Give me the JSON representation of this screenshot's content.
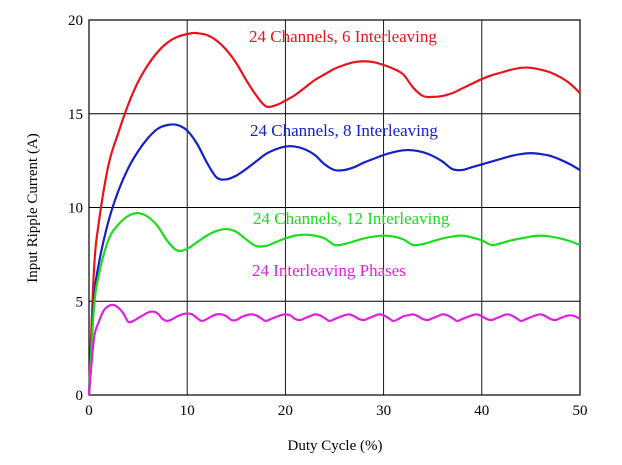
{
  "chart_data": {
    "type": "line",
    "xlabel": "Duty Cycle (%)",
    "ylabel": "Input Ripple Current (A)",
    "xlim": [
      0,
      50
    ],
    "ylim": [
      0,
      20
    ],
    "xticks": [
      "0",
      "10",
      "20",
      "30",
      "40",
      "50"
    ],
    "yticks": [
      "0",
      "5",
      "10",
      "15",
      "20"
    ],
    "grid": true,
    "legend": "inline-labels",
    "series": [
      {
        "name": "24 Channels, 6 Interleaving",
        "color": "#e8141c",
        "x": [
          0,
          0.5,
          1,
          2,
          3,
          4,
          5,
          6,
          7,
          8,
          9,
          10,
          10.5,
          11,
          12,
          13,
          14,
          15,
          16,
          17,
          18,
          19,
          20,
          21,
          22,
          23,
          24,
          25,
          26,
          27,
          28,
          29,
          30,
          31,
          32,
          33,
          34,
          35,
          36,
          37,
          38,
          39,
          40,
          41,
          42,
          43,
          44,
          45,
          46,
          47,
          48,
          49,
          50
        ],
        "values": [
          0,
          6.6,
          9.2,
          12.3,
          14.0,
          15.5,
          16.7,
          17.6,
          18.3,
          18.8,
          19.1,
          19.25,
          19.3,
          19.3,
          19.2,
          18.9,
          18.4,
          17.7,
          16.8,
          16.0,
          15.4,
          15.45,
          15.7,
          16.0,
          16.4,
          16.8,
          17.1,
          17.4,
          17.6,
          17.75,
          17.8,
          17.75,
          17.6,
          17.4,
          17.1,
          16.4,
          15.95,
          15.9,
          15.95,
          16.1,
          16.35,
          16.6,
          16.85,
          17.05,
          17.2,
          17.35,
          17.45,
          17.45,
          17.35,
          17.2,
          16.95,
          16.6,
          16.1
        ]
      },
      {
        "name": "24 Channels, 8 Interleaving",
        "color": "#1420c8",
        "x": [
          0,
          0.5,
          1,
          2,
          3,
          4,
          5,
          6,
          7,
          8,
          9,
          10,
          11,
          12,
          13,
          14,
          15,
          16,
          17,
          18,
          19,
          20,
          21,
          22,
          23,
          24,
          25,
          26,
          27,
          28,
          29,
          30,
          31,
          32,
          33,
          34,
          35,
          36,
          37,
          38,
          39,
          40,
          41,
          42,
          43,
          44,
          45,
          46,
          47,
          48,
          49,
          50
        ],
        "values": [
          0,
          5.0,
          7.0,
          9.3,
          10.9,
          12.1,
          13.0,
          13.7,
          14.2,
          14.4,
          14.4,
          14.1,
          13.4,
          12.4,
          11.6,
          11.5,
          11.7,
          12.05,
          12.45,
          12.85,
          13.1,
          13.25,
          13.25,
          13.1,
          12.8,
          12.3,
          12.0,
          12.0,
          12.15,
          12.4,
          12.6,
          12.8,
          12.95,
          13.05,
          13.05,
          12.95,
          12.75,
          12.45,
          12.05,
          12.0,
          12.15,
          12.3,
          12.45,
          12.6,
          12.75,
          12.85,
          12.9,
          12.85,
          12.75,
          12.55,
          12.3,
          12.0
        ]
      },
      {
        "name": "24 Channels, 12 Interleaving",
        "color": "#1cdc1c",
        "x": [
          0,
          0.5,
          1,
          2,
          3,
          4,
          5,
          6,
          7,
          8,
          9,
          10,
          11,
          12,
          13,
          14,
          15,
          16,
          17,
          18,
          19,
          20,
          21,
          22,
          23,
          24,
          25,
          26,
          27,
          28,
          29,
          30,
          31,
          32,
          33,
          34,
          35,
          36,
          37,
          38,
          39,
          40,
          41,
          42,
          43,
          44,
          45,
          46,
          47,
          48,
          49,
          50
        ],
        "values": [
          0,
          4.6,
          6.4,
          8.3,
          9.1,
          9.55,
          9.7,
          9.5,
          9.0,
          8.2,
          7.7,
          7.8,
          8.15,
          8.5,
          8.75,
          8.85,
          8.7,
          8.3,
          7.95,
          7.95,
          8.15,
          8.35,
          8.5,
          8.55,
          8.5,
          8.35,
          8.0,
          8.05,
          8.2,
          8.35,
          8.45,
          8.5,
          8.45,
          8.3,
          8.0,
          8.05,
          8.2,
          8.35,
          8.45,
          8.5,
          8.4,
          8.25,
          8.0,
          8.1,
          8.25,
          8.35,
          8.45,
          8.5,
          8.45,
          8.35,
          8.2,
          8.0
        ]
      },
      {
        "name": "24 Interleaving Phases",
        "color": "#e020e0",
        "x": [
          0,
          0.5,
          1,
          1.5,
          2,
          2.5,
          3,
          3.5,
          4,
          4.5,
          5,
          5.5,
          6,
          6.5,
          7,
          7.5,
          8,
          8.5,
          9,
          9.5,
          10,
          10.5,
          11,
          11.5,
          12,
          12.5,
          13,
          13.5,
          14,
          14.5,
          15,
          15.5,
          16,
          16.5,
          17,
          17.5,
          18,
          18.5,
          19,
          19.5,
          20,
          20.5,
          21,
          21.5,
          22,
          22.5,
          23,
          23.5,
          24,
          24.5,
          25,
          25.5,
          26,
          26.5,
          27,
          27.5,
          28,
          28.5,
          29,
          29.5,
          30,
          30.5,
          31,
          31.5,
          32,
          32.5,
          33,
          33.5,
          34,
          34.5,
          35,
          35.5,
          36,
          36.5,
          37,
          37.5,
          38,
          38.5,
          39,
          39.5,
          40,
          40.5,
          41,
          41.5,
          42,
          42.5,
          43,
          43.5,
          44,
          44.5,
          45,
          45.5,
          46,
          46.5,
          47,
          47.5,
          48,
          48.5,
          49,
          49.5,
          50
        ],
        "values": [
          0,
          3.0,
          3.9,
          4.5,
          4.75,
          4.8,
          4.65,
          4.35,
          3.9,
          3.95,
          4.1,
          4.25,
          4.4,
          4.45,
          4.35,
          4.05,
          3.95,
          4.05,
          4.2,
          4.3,
          4.35,
          4.3,
          4.1,
          3.95,
          4.05,
          4.2,
          4.3,
          4.3,
          4.2,
          4.0,
          4.0,
          4.15,
          4.25,
          4.3,
          4.25,
          4.1,
          3.95,
          4.05,
          4.15,
          4.25,
          4.3,
          4.25,
          4.05,
          4.0,
          4.1,
          4.2,
          4.3,
          4.25,
          4.1,
          3.95,
          4.05,
          4.15,
          4.25,
          4.3,
          4.2,
          4.05,
          4.0,
          4.1,
          4.2,
          4.3,
          4.25,
          4.1,
          3.95,
          4.05,
          4.2,
          4.25,
          4.3,
          4.2,
          4.05,
          4.0,
          4.1,
          4.2,
          4.3,
          4.25,
          4.1,
          3.95,
          4.05,
          4.15,
          4.25,
          4.3,
          4.2,
          4.05,
          4.0,
          4.1,
          4.2,
          4.3,
          4.25,
          4.1,
          3.95,
          4.05,
          4.15,
          4.25,
          4.3,
          4.2,
          4.05,
          4.0,
          4.1,
          4.2,
          4.25,
          4.2,
          4.05
        ]
      }
    ]
  }
}
